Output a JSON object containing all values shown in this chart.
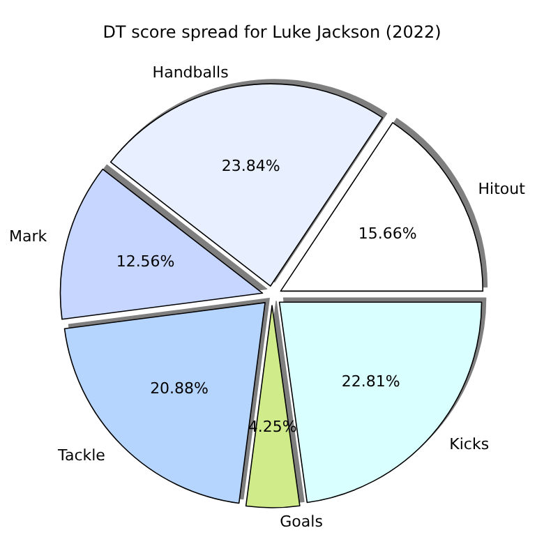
{
  "chart_data": {
    "type": "pie",
    "title": "DT score spread for Luke Jackson (2022)",
    "categories": [
      "Hitout",
      "Handballs",
      "Mark",
      "Tackle",
      "Goals",
      "Kicks"
    ],
    "values": [
      15.66,
      23.84,
      12.56,
      20.88,
      4.25,
      22.81
    ],
    "value_labels": [
      "15.66%",
      "23.84%",
      "12.56%",
      "20.88%",
      "4.25%",
      "22.81%"
    ],
    "colors": [
      "#ffffff",
      "#e8f0ff",
      "#c6d6ff",
      "#b5d5ff",
      "#d0eb8a",
      "#d9ffff"
    ],
    "legend": false
  }
}
